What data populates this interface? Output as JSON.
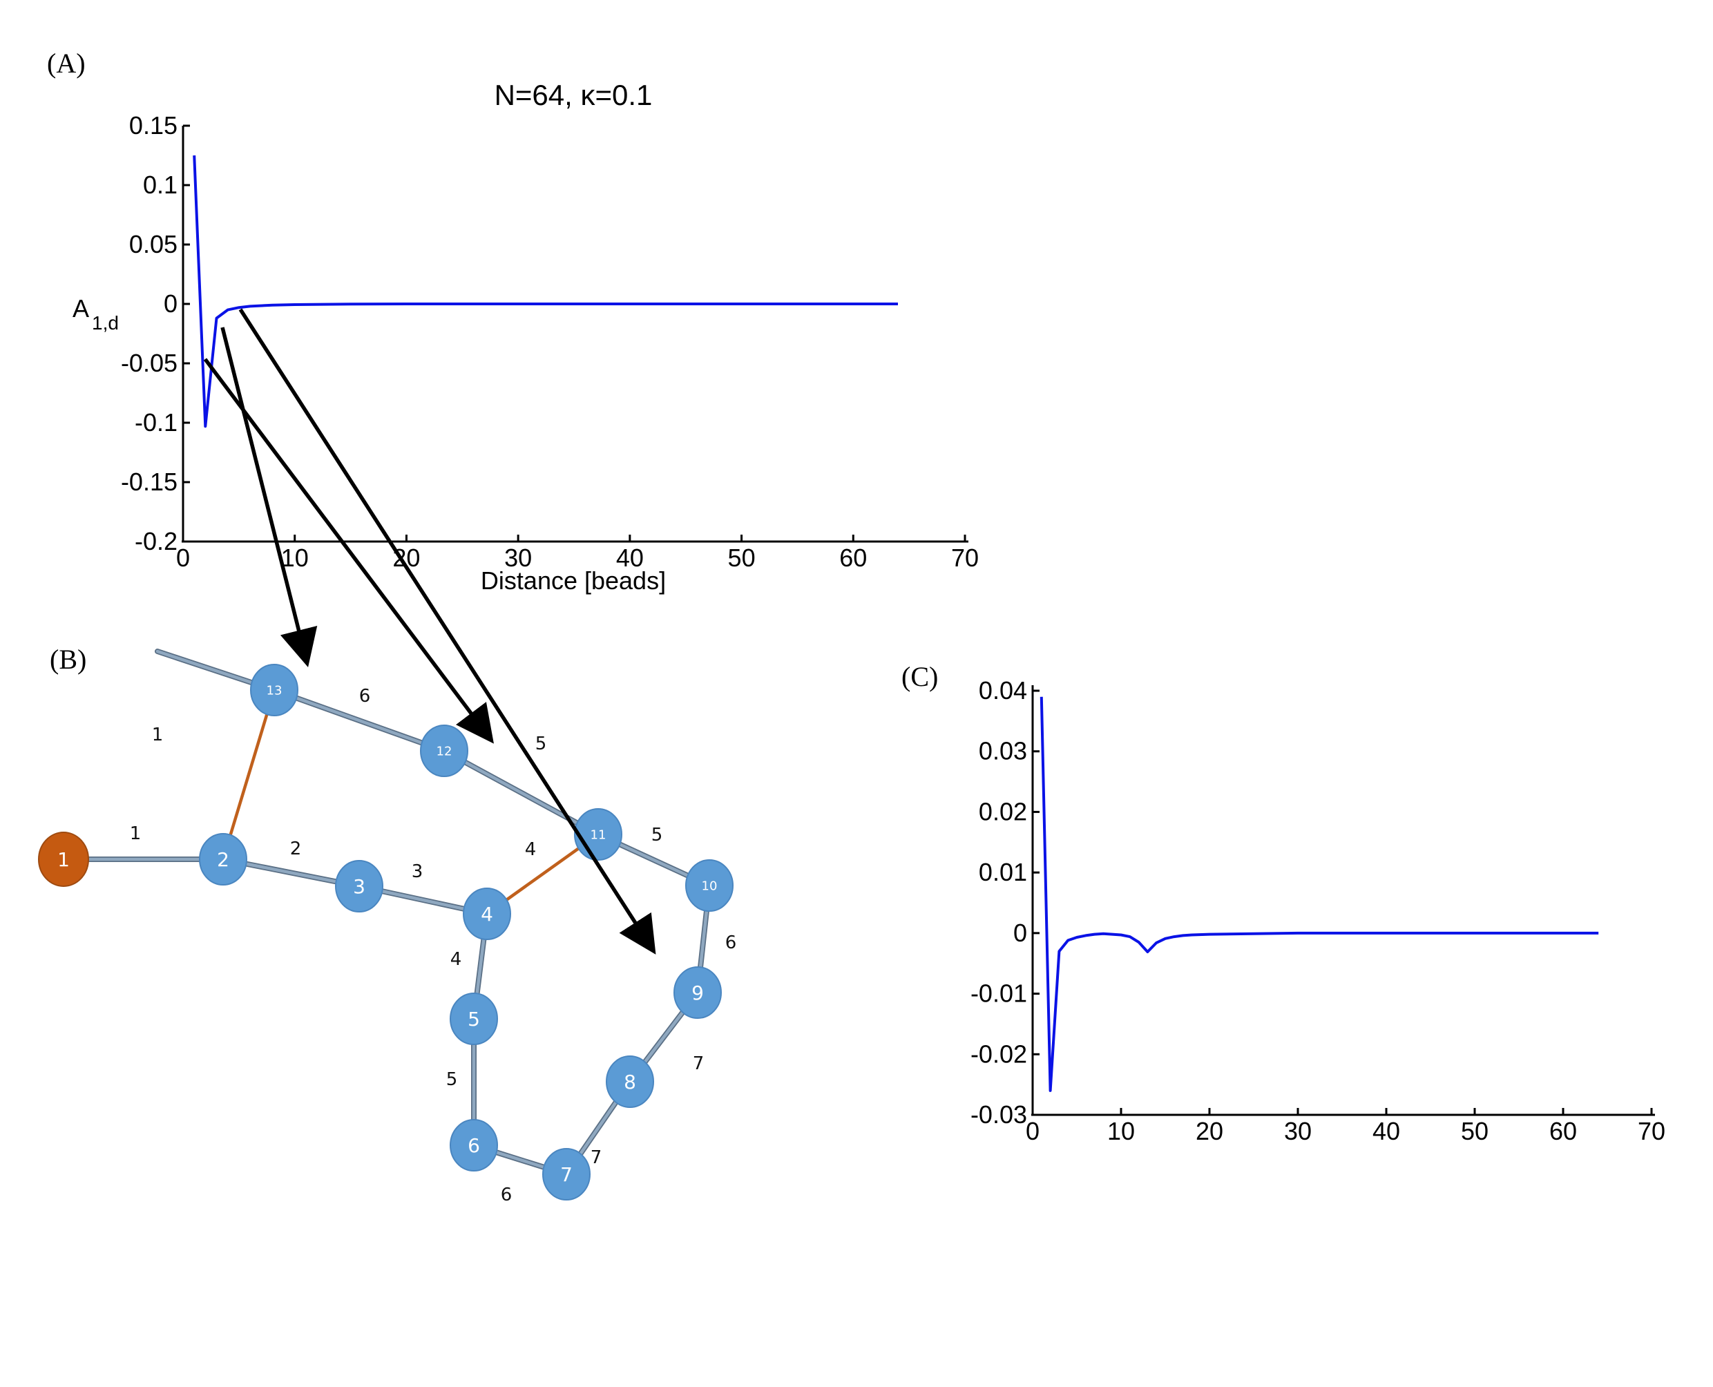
{
  "panels": {
    "A": {
      "label": "(A)"
    },
    "B": {
      "label": "(B)"
    },
    "C": {
      "label": "(C)"
    }
  },
  "colors": {
    "line": "#0a12e6",
    "node": "#5b9bd5",
    "node_stroke": "#4a86c0",
    "node_highlight": "#c55a11",
    "node_highlight_stroke": "#9e4a10",
    "edge": "#8fa8c0",
    "edge_dark": "#5a6f85",
    "edge_cross": "#c0601c",
    "arrow": "#000000"
  },
  "chart_data": [
    {
      "id": "A",
      "type": "line",
      "title": "N=64, κ=0.1",
      "xlabel": "Distance [beads]",
      "ylabel_main": "A",
      "ylabel_sub": "1,d",
      "xlim": [
        0,
        70
      ],
      "ylim": [
        -0.2,
        0.15
      ],
      "xticks": [
        0,
        10,
        20,
        30,
        40,
        50,
        60,
        70
      ],
      "xtick_labels": [
        "0",
        "10",
        "20",
        "30",
        "40",
        "50",
        "60",
        "70"
      ],
      "yticks": [
        0.15,
        0.1,
        0.05,
        0,
        -0.05,
        -0.1,
        -0.15,
        -0.2
      ],
      "ytick_labels": [
        "0.15",
        "0.1",
        "0.05",
        "0",
        "-0.05",
        "-0.1",
        "-0.15",
        "-0.2"
      ],
      "grid": false,
      "series": [
        {
          "x": [
            1,
            2,
            3,
            4,
            5,
            6,
            8,
            10,
            15,
            20,
            30,
            40,
            50,
            60,
            64
          ],
          "y": [
            0.125,
            -0.103,
            -0.012,
            -0.005,
            -0.003,
            -0.002,
            -0.001,
            -0.0006,
            -0.0002,
            0,
            0,
            0,
            0,
            0,
            0
          ]
        }
      ]
    },
    {
      "id": "C",
      "type": "line",
      "xlim": [
        0,
        70
      ],
      "ylim": [
        -0.03,
        0.04
      ],
      "xticks": [
        0,
        10,
        20,
        30,
        40,
        50,
        60,
        70
      ],
      "xtick_labels": [
        "0",
        "10",
        "20",
        "30",
        "40",
        "50",
        "60",
        "70"
      ],
      "yticks": [
        0.04,
        0.03,
        0.02,
        0.01,
        0,
        -0.01,
        -0.02,
        -0.03
      ],
      "ytick_labels": [
        "0.04",
        "0.03",
        "0.02",
        "0.01",
        "0",
        "-0.01",
        "-0.02",
        "-0.03"
      ],
      "grid": false,
      "series": [
        {
          "x": [
            1,
            2,
            3,
            4,
            5,
            6,
            7,
            8,
            9,
            10,
            11,
            12,
            13,
            14,
            15,
            16,
            17,
            18,
            20,
            25,
            30,
            40,
            50,
            60,
            64
          ],
          "y": [
            0.039,
            -0.026,
            -0.003,
            -0.0012,
            -0.0007,
            -0.0004,
            -0.0002,
            -0.0001,
            -0.0002,
            -0.0003,
            -0.0006,
            -0.0015,
            -0.0031,
            -0.0016,
            -0.0009,
            -0.0006,
            -0.0004,
            -0.0003,
            -0.0002,
            -0.0001,
            0,
            0,
            0,
            0,
            0
          ]
        }
      ]
    }
  ],
  "network": {
    "nodes": [
      {
        "id": "1",
        "label": "1",
        "highlight": true
      },
      {
        "id": "2",
        "label": "2"
      },
      {
        "id": "3",
        "label": "3"
      },
      {
        "id": "4",
        "label": "4"
      },
      {
        "id": "5",
        "label": "5"
      },
      {
        "id": "6",
        "label": "6"
      },
      {
        "id": "7",
        "label": "7"
      },
      {
        "id": "8",
        "label": "8"
      },
      {
        "id": "9",
        "label": "9"
      },
      {
        "id": "10",
        "label": "10"
      },
      {
        "id": "11",
        "label": "11"
      },
      {
        "id": "12",
        "label": "12"
      },
      {
        "id": "13",
        "label": "13"
      }
    ],
    "edge_labels": [
      "1",
      "1",
      "2",
      "3",
      "4",
      "4",
      "5",
      "6",
      "7",
      "7",
      "6",
      "5",
      "5",
      "6"
    ]
  }
}
